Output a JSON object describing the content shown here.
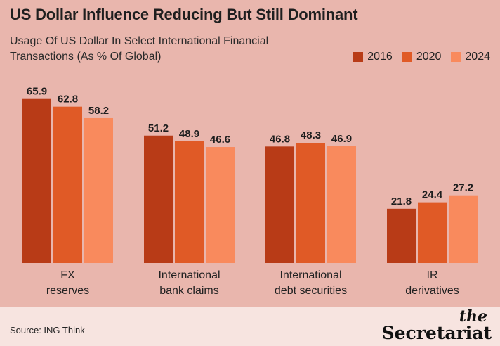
{
  "title": "US Dollar Influence Reducing But Still Dominant",
  "subtitle": "Usage Of US Dollar In Select International Financial Transactions (As % Of Global)",
  "source": "Source: ING Think",
  "brand": {
    "the": "the",
    "name": "Secretariat"
  },
  "colors": {
    "2016": "#b83b17",
    "2020": "#e05a26",
    "2024": "#f98a5d"
  },
  "chart_data": {
    "type": "bar",
    "title": "US Dollar Influence Reducing But Still Dominant",
    "subtitle": "Usage Of US Dollar In Select International Financial Transactions (As % Of Global)",
    "categories": [
      [
        "FX",
        "reserves"
      ],
      [
        "International",
        "bank claims"
      ],
      [
        "International",
        "debt securities"
      ],
      [
        "IR",
        "derivatives"
      ]
    ],
    "series": [
      {
        "name": "2016",
        "values": [
          65.9,
          51.2,
          46.8,
          21.8
        ]
      },
      {
        "name": "2020",
        "values": [
          62.8,
          48.9,
          48.3,
          24.4
        ]
      },
      {
        "name": "2024",
        "values": [
          58.2,
          46.6,
          46.9,
          27.2
        ]
      }
    ],
    "ylim": [
      0,
      70
    ],
    "grid": false,
    "legend": "top-right"
  }
}
